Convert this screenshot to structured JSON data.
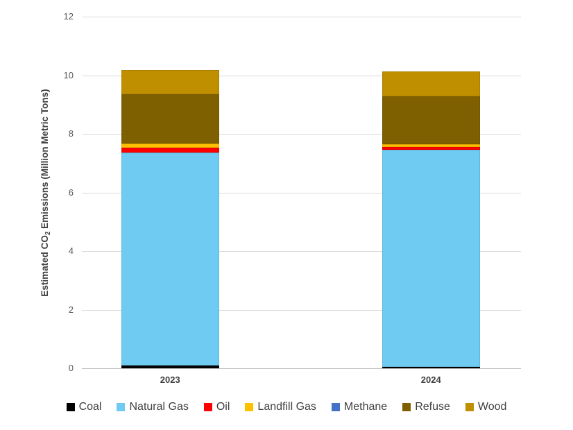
{
  "page": {
    "background": "#ffffff"
  },
  "chart_data": {
    "type": "bar",
    "stacked": true,
    "title": "",
    "categories": [
      "2023",
      "2024"
    ],
    "series": [
      {
        "name": "Coal",
        "color": "#000000",
        "values": [
          0.1,
          0.05
        ]
      },
      {
        "name": "Natural Gas",
        "color": "#6FCBF1",
        "values": [
          7.25,
          7.4
        ]
      },
      {
        "name": "Oil",
        "color": "#FF0000",
        "values": [
          0.18,
          0.09
        ]
      },
      {
        "name": "Landfill Gas",
        "color": "#FFC000",
        "values": [
          0.14,
          0.1
        ]
      },
      {
        "name": "Methane",
        "color": "#4472C4",
        "values": [
          0.01,
          0.01
        ]
      },
      {
        "name": "Refuse",
        "color": "#7F6000",
        "values": [
          1.67,
          1.62
        ]
      },
      {
        "name": "Wood",
        "color": "#BF8F00",
        "values": [
          0.83,
          0.85
        ]
      }
    ],
    "category_totals": [
      10.18,
      10.12
    ],
    "xlabel": "",
    "ylabel": "Estimated CO2 Emissions (Million Metric Tons)",
    "ylabel_prefix": "Estimated CO",
    "ylabel_sub": "2",
    "ylabel_suffix": " Emissions (Million Metric Tons)",
    "ylim": [
      0,
      12
    ],
    "ytick_step": 2,
    "ytick_labels": [
      "0",
      "2",
      "4",
      "6",
      "8",
      "10",
      "12"
    ],
    "grid": true,
    "gridline_color": "#D9D9D9",
    "axis_line_color": "#BFBFBF",
    "tick_label_color": "#595959",
    "text_color": "#404040",
    "legend_position": "bottom"
  }
}
